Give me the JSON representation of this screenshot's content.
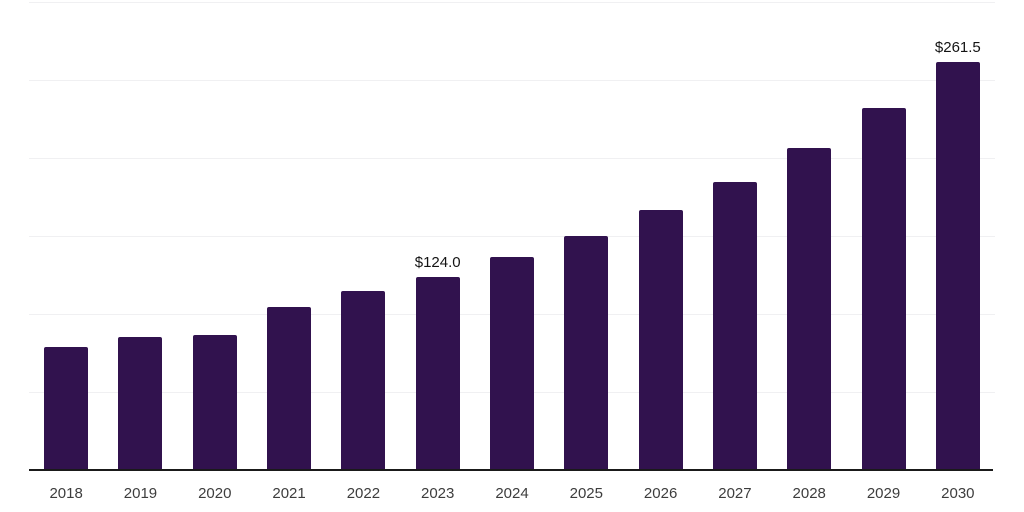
{
  "chart_data": {
    "type": "bar",
    "title": "",
    "xlabel": "",
    "ylabel": "",
    "categories": [
      "2018",
      "2019",
      "2020",
      "2021",
      "2022",
      "2023",
      "2024",
      "2025",
      "2026",
      "2027",
      "2028",
      "2029",
      "2030"
    ],
    "values": [
      78.6,
      85.2,
      86.5,
      104.2,
      114.5,
      124.0,
      136.5,
      150.0,
      166.7,
      184.6,
      206.4,
      232.1,
      261.5
    ],
    "data_labels": [
      null,
      null,
      null,
      null,
      null,
      "$124.0",
      null,
      null,
      null,
      null,
      null,
      null,
      "$261.5"
    ],
    "ylim": [
      0,
      300
    ],
    "gridline_step": 50,
    "grid": true,
    "legend": false,
    "colors": {
      "bar": "#31124e",
      "gridline": "#f0f0f2",
      "axis_line": "#1a1a1a",
      "tick_label": "#3d3d3d",
      "data_label": "#141414",
      "background": "#ffffff"
    }
  }
}
